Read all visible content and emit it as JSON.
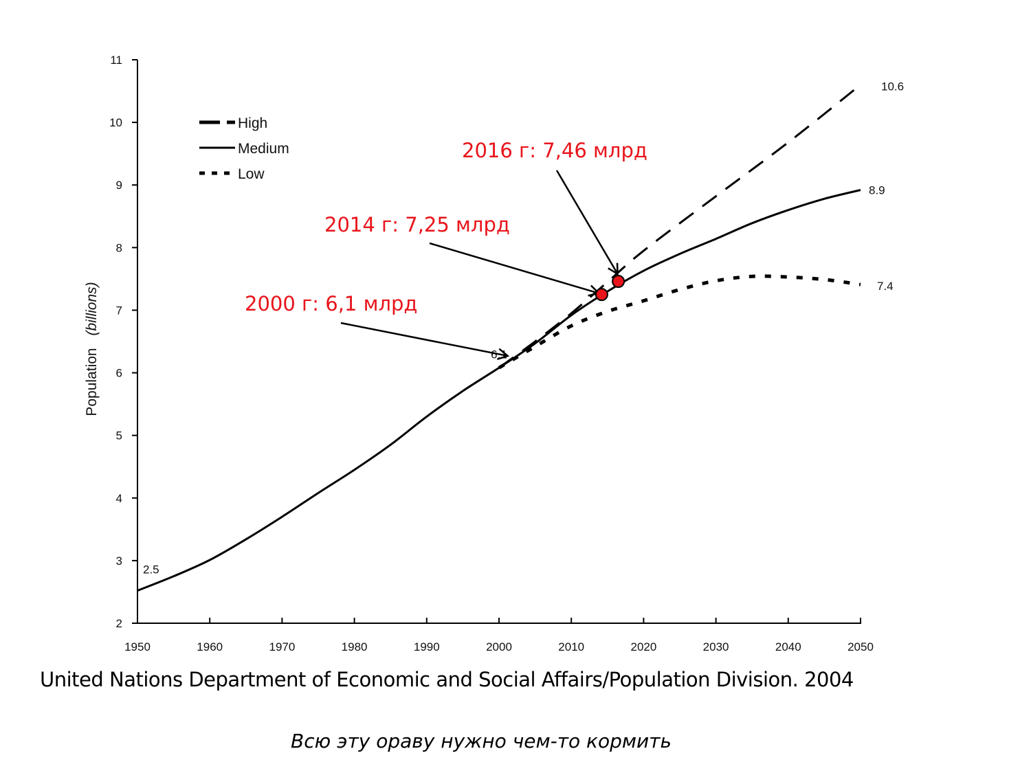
{
  "chart_data": {
    "type": "line",
    "title": "",
    "xlabel": "",
    "ylabel": "Population",
    "ylabel_italic": "(billions)",
    "xlim": [
      1950,
      2050
    ],
    "ylim": [
      2,
      11
    ],
    "x_ticks": [
      1950,
      1960,
      1970,
      1980,
      1990,
      2000,
      2010,
      2020,
      2030,
      2040,
      2050
    ],
    "y_ticks": [
      2,
      3,
      4,
      5,
      6,
      7,
      8,
      9,
      10,
      11
    ],
    "grid": false,
    "legend_position": "top-left",
    "series": [
      {
        "name": "High",
        "style": "dashed",
        "x": [
          2000,
          2005,
          2010,
          2015,
          2020,
          2030,
          2040,
          2050
        ],
        "values": [
          6.08,
          6.5,
          6.95,
          7.45,
          7.95,
          8.82,
          9.68,
          10.6
        ]
      },
      {
        "name": "Medium",
        "style": "solid",
        "x": [
          1950,
          1955,
          1960,
          1965,
          1970,
          1975,
          1980,
          1985,
          1990,
          1995,
          2000,
          2005,
          2010,
          2015,
          2020,
          2025,
          2030,
          2035,
          2040,
          2045,
          2050
        ],
        "values": [
          2.52,
          2.75,
          3.01,
          3.34,
          3.7,
          4.08,
          4.45,
          4.85,
          5.3,
          5.71,
          6.08,
          6.47,
          6.92,
          7.3,
          7.63,
          7.9,
          8.14,
          8.39,
          8.6,
          8.78,
          8.92
        ]
      },
      {
        "name": "Low",
        "style": "dotted",
        "x": [
          2000,
          2005,
          2010,
          2015,
          2020,
          2025,
          2030,
          2035,
          2040,
          2045,
          2050
        ],
        "values": [
          6.08,
          6.42,
          6.75,
          6.98,
          7.15,
          7.33,
          7.47,
          7.54,
          7.53,
          7.49,
          7.41
        ]
      }
    ],
    "point_labels": [
      {
        "x": 1950,
        "y": 2.52,
        "text": "2.5"
      },
      {
        "x": 2000,
        "y": 6.08,
        "text": "6.1"
      },
      {
        "x": 2050,
        "y": 10.6,
        "text": "10.6"
      },
      {
        "x": 2050,
        "y": 8.92,
        "text": "8.9"
      },
      {
        "x": 2050,
        "y": 7.41,
        "text": "7.4"
      }
    ],
    "highlight_points": [
      {
        "x": 2014.2,
        "y": 7.25,
        "color": "#e8141b"
      },
      {
        "x": 2016.5,
        "y": 7.46,
        "color": "#e8141b"
      }
    ],
    "annotations": [
      {
        "text": "2016 г: 7,46 млрд",
        "color": "#e8141b",
        "target_x": 2016.4,
        "target_y": 7.58
      },
      {
        "text": "2014 г: 7,25 млрд",
        "color": "#e8141b",
        "target_x": 2013.8,
        "target_y": 7.27
      },
      {
        "text": "2000 г: 6,1 млрд",
        "color": "#e8141b",
        "target_x": 2001.2,
        "target_y": 6.27
      }
    ]
  },
  "source_text": "United Nations Department of Economic and Social Affairs/Population Division. 2004",
  "caption_text": "Всю эту ораву нужно чем-то кормить"
}
